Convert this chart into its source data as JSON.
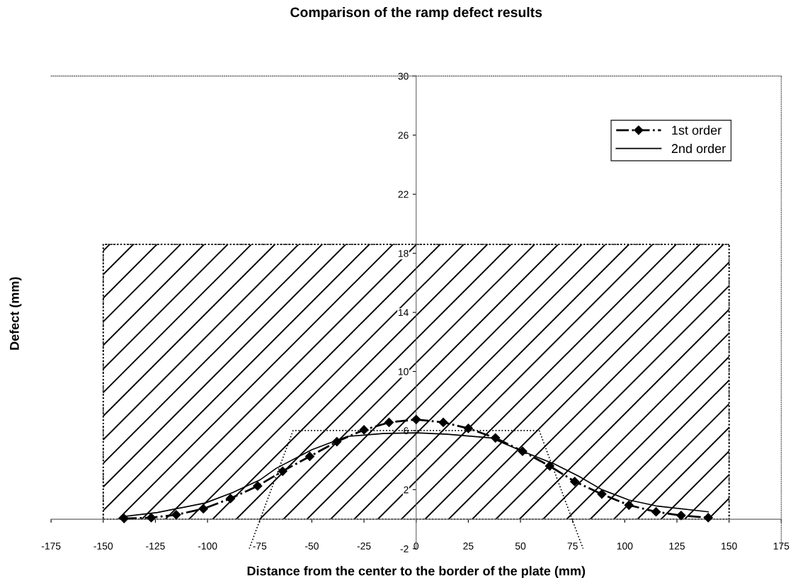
{
  "chart_data": {
    "type": "line",
    "title": "Comparison of the ramp defect results",
    "xlabel": "Distance from the center to the border of the plate (mm)",
    "ylabel": "Defect (mm)",
    "xlim": [
      -175,
      175
    ],
    "ylim": [
      -2,
      30
    ],
    "xticks": [
      -175,
      -150,
      -125,
      -100,
      -75,
      -50,
      -25,
      0,
      25,
      50,
      75,
      100,
      125,
      150,
      175
    ],
    "yticks": [
      -2,
      2,
      6,
      10,
      14,
      18,
      22,
      26,
      30
    ],
    "grid": false,
    "legend": "top right",
    "series": [
      {
        "type": "area",
        "color": "#000000",
        "line_style": "dotted",
        "x": [
          -150,
          150
        ],
        "values": [
          18.6,
          18.6
        ]
      },
      {
        "color": "#000000",
        "line_style": "dotted",
        "marker": "none",
        "x": [
          -80,
          -59,
          59,
          80
        ],
        "values": [
          -2,
          6,
          6,
          -2
        ]
      },
      {
        "name": "1st order",
        "color": "#000000",
        "line_style": "dashed",
        "marker": "diamond",
        "x": [
          -140,
          -127,
          -115,
          -102,
          -89,
          -76,
          -64,
          -51,
          -38,
          -25,
          -13,
          0,
          13,
          25,
          38,
          51,
          64,
          76,
          89,
          102,
          115,
          127,
          140
        ],
        "values": [
          0.05,
          0.1,
          0.3,
          0.7,
          1.4,
          2.25,
          3.25,
          4.25,
          5.25,
          6.05,
          6.55,
          6.75,
          6.55,
          6.15,
          5.5,
          4.6,
          3.6,
          2.55,
          1.7,
          0.95,
          0.5,
          0.25,
          0.1
        ]
      },
      {
        "name": "2nd order",
        "color": "#000000",
        "line_style": "solid",
        "marker": "none",
        "x": [
          -139,
          -124,
          -101,
          -88,
          -75,
          -67,
          -50,
          -37,
          -33,
          -16,
          0,
          15,
          36,
          50,
          66,
          78,
          89,
          102,
          115,
          140
        ],
        "values": [
          0.2,
          0.45,
          1.1,
          1.8,
          2.65,
          3.45,
          4.7,
          5.4,
          5.6,
          5.8,
          5.85,
          5.75,
          5.5,
          4.65,
          3.75,
          2.9,
          2.0,
          1.3,
          0.9,
          0.5
        ]
      }
    ]
  }
}
